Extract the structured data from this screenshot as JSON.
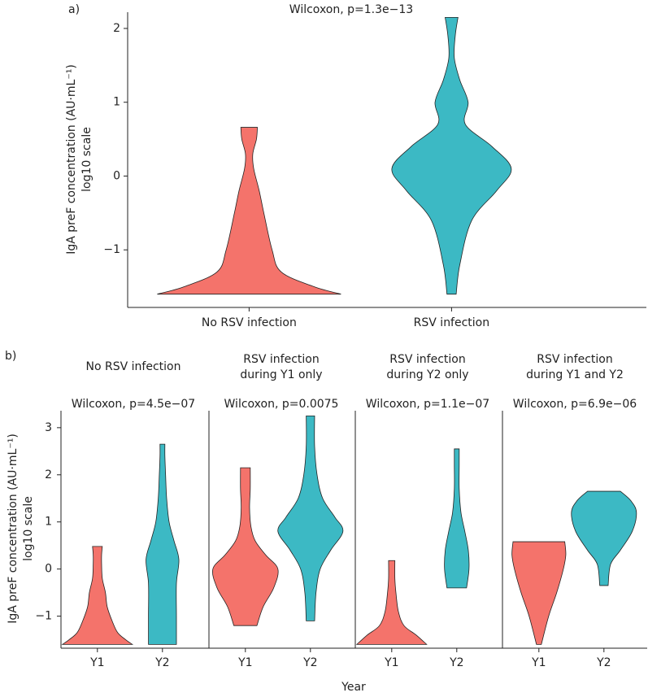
{
  "chart_data": [
    {
      "type": "violin",
      "label": "a)",
      "annotation": "Wilcoxon, p=1.3e−13",
      "y_label": [
        "IgA preF concentration (AU·mL⁻¹)",
        "log10 scale"
      ],
      "categories": [
        "No RSV infection",
        "RSV infection"
      ],
      "ylim": [
        -1.78,
        2.22
      ],
      "yticks": [
        {
          "value": -1,
          "label": "−1"
        },
        0,
        1,
        2
      ],
      "violins": [
        {
          "color": "#F4736B",
          "y": [
            -1.6,
            -1.5,
            -1.3,
            -1.0,
            -0.5,
            -0.2,
            0.1,
            0.3,
            0.5,
            0.66
          ],
          "density": [
            1,
            0.71,
            0.35,
            0.25,
            0.16,
            0.11,
            0.05,
            0.04,
            0.08,
            0.09
          ]
        },
        {
          "color": "#3CB9C4",
          "y": [
            -1.6,
            -1.2,
            -0.6,
            -0.2,
            0.1,
            0.4,
            0.7,
            1.0,
            1.3,
            1.6,
            1.9,
            2.15
          ],
          "density": [
            0.05,
            0.09,
            0.22,
            0.49,
            0.65,
            0.44,
            0.15,
            0.18,
            0.09,
            0.03,
            0.04,
            0.07
          ]
        }
      ]
    },
    {
      "type": "violin",
      "label": "b)",
      "y_label": [
        "IgA preF concentration (AU·mL⁻¹)",
        "log10 scale"
      ],
      "x_label": "Year",
      "ylim": [
        -1.68,
        3.36
      ],
      "yticks": [
        {
          "value": -1,
          "label": "−1"
        },
        0,
        1,
        2,
        3
      ],
      "facets": [
        {
          "title": [
            "No RSV infection"
          ],
          "annotation": "Wilcoxon, p=4.5e−07",
          "categories": [
            "Y1",
            "Y2"
          ],
          "violins": [
            {
              "color": "#F4736B",
              "y": [
                -1.6,
                -1.5,
                -1.35,
                -1.1,
                -0.8,
                -0.5,
                -0.2,
                0.1,
                0.3,
                0.48
              ],
              "density": [
                1,
                0.81,
                0.58,
                0.42,
                0.28,
                0.23,
                0.14,
                0.12,
                0.12,
                0.14
              ]
            },
            {
              "color": "#3CB9C4",
              "y": [
                -1.6,
                -1.0,
                -0.3,
                0.2,
                0.6,
                1.0,
                1.5,
                2.0,
                2.4,
                2.65
              ],
              "density": [
                0.4,
                0.4,
                0.4,
                0.47,
                0.33,
                0.19,
                0.12,
                0.09,
                0.07,
                0.07
              ]
            }
          ]
        },
        {
          "title": [
            "RSV infection",
            "during Y1 only"
          ],
          "annotation": "Wilcoxon, p=0.0075",
          "categories": [
            "Y1",
            "Y2"
          ],
          "violins": [
            {
              "color": "#F4736B",
              "y": [
                -1.2,
                -0.8,
                -0.4,
                0,
                0.3,
                0.6,
                0.9,
                1.3,
                1.7,
                2.15
              ],
              "density": [
                0.33,
                0.51,
                0.81,
                0.93,
                0.58,
                0.28,
                0.16,
                0.12,
                0.14,
                0.14
              ]
            },
            {
              "color": "#3CB9C4",
              "y": [
                -1.1,
                -0.5,
                0,
                0.4,
                0.8,
                1.1,
                1.5,
                2.0,
                2.6,
                3.25
              ],
              "density": [
                0.12,
                0.16,
                0.28,
                0.58,
                0.93,
                0.7,
                0.35,
                0.19,
                0.12,
                0.12
              ]
            }
          ]
        },
        {
          "title": [
            "RSV infection",
            "during Y2 only"
          ],
          "annotation": "Wilcoxon, p=1.1e−07",
          "categories": [
            "Y1",
            "Y2"
          ],
          "violins": [
            {
              "color": "#F4736B",
              "y": [
                -1.6,
                -1.4,
                -1.2,
                -0.9,
                -0.5,
                -0.2,
                0.18
              ],
              "density": [
                1,
                0.7,
                0.35,
                0.19,
                0.12,
                0.09,
                0.09
              ]
            },
            {
              "color": "#3CB9C4",
              "y": [
                -0.4,
                0,
                0.4,
                0.8,
                1.2,
                1.7,
                2.2,
                2.55
              ],
              "density": [
                0.28,
                0.35,
                0.33,
                0.23,
                0.12,
                0.07,
                0.07,
                0.07
              ]
            }
          ]
        },
        {
          "title": [
            "RSV infection",
            "during Y1 and Y2"
          ],
          "annotation": "Wilcoxon, p=6.9e−06",
          "categories": [
            "Y1",
            "Y2"
          ],
          "violins": [
            {
              "color": "#F4736B",
              "y": [
                -1.6,
                -1.0,
                -0.5,
                0,
                0.3,
                0.58
              ],
              "density": [
                0.07,
                0.28,
                0.51,
                0.7,
                0.77,
                0.74
              ]
            },
            {
              "color": "#3CB9C4",
              "y": [
                -0.35,
                0.1,
                0.4,
                0.8,
                1.2,
                1.45,
                1.65
              ],
              "density": [
                0.12,
                0.19,
                0.47,
                0.81,
                0.93,
                0.77,
                0.47
              ]
            }
          ]
        }
      ]
    }
  ]
}
